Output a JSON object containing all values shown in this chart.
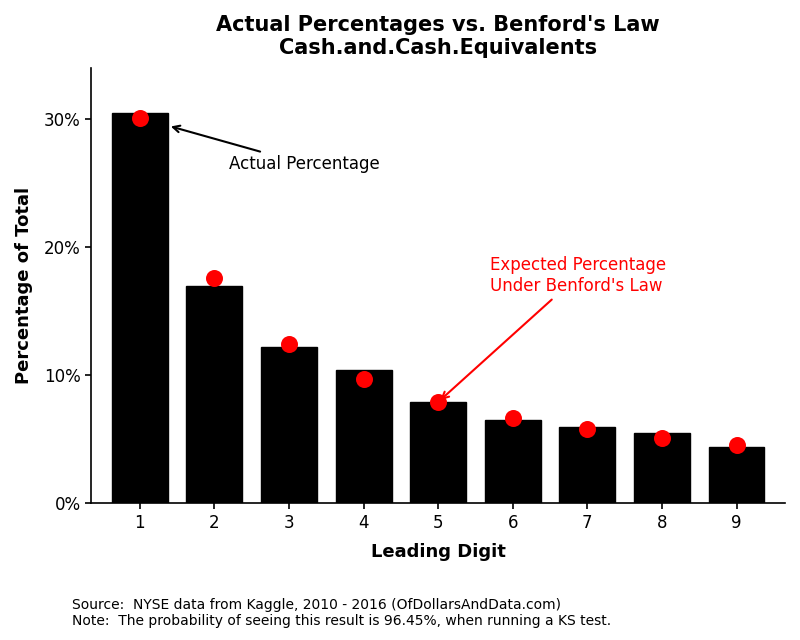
{
  "title_line1": "Actual Percentages vs. Benford's Law",
  "title_line2": "Cash.and.Cash.Equivalents",
  "xlabel": "Leading Digit",
  "ylabel": "Percentage of Total",
  "digits": [
    1,
    2,
    3,
    4,
    5,
    6,
    7,
    8,
    9
  ],
  "actual_values": [
    0.305,
    0.17,
    0.122,
    0.104,
    0.079,
    0.065,
    0.06,
    0.055,
    0.044
  ],
  "benford_values": [
    0.301,
    0.1761,
    0.1249,
    0.0969,
    0.0792,
    0.0669,
    0.058,
    0.0512,
    0.0458
  ],
  "bar_color": "#000000",
  "dot_color": "#ff0000",
  "background_color": "#ffffff",
  "ylim": [
    0,
    0.34
  ],
  "yticks": [
    0.0,
    0.1,
    0.2,
    0.3
  ],
  "ytick_labels": [
    "0%",
    "10%",
    "20%",
    "30%"
  ],
  "source_text": "Source:  NYSE data from Kaggle, 2010 - 2016 (OfDollarsAndData.com)",
  "note_text": "Note:  The probability of seeing this result is 96.45%, when running a KS test.",
  "annotation_actual_text": "Actual Percentage",
  "annotation_benford_text": "Expected Percentage\nUnder Benford's Law",
  "title_fontsize": 15,
  "axis_label_fontsize": 13,
  "tick_fontsize": 12,
  "annotation_fontsize": 12,
  "source_fontsize": 10,
  "dot_size": 150
}
